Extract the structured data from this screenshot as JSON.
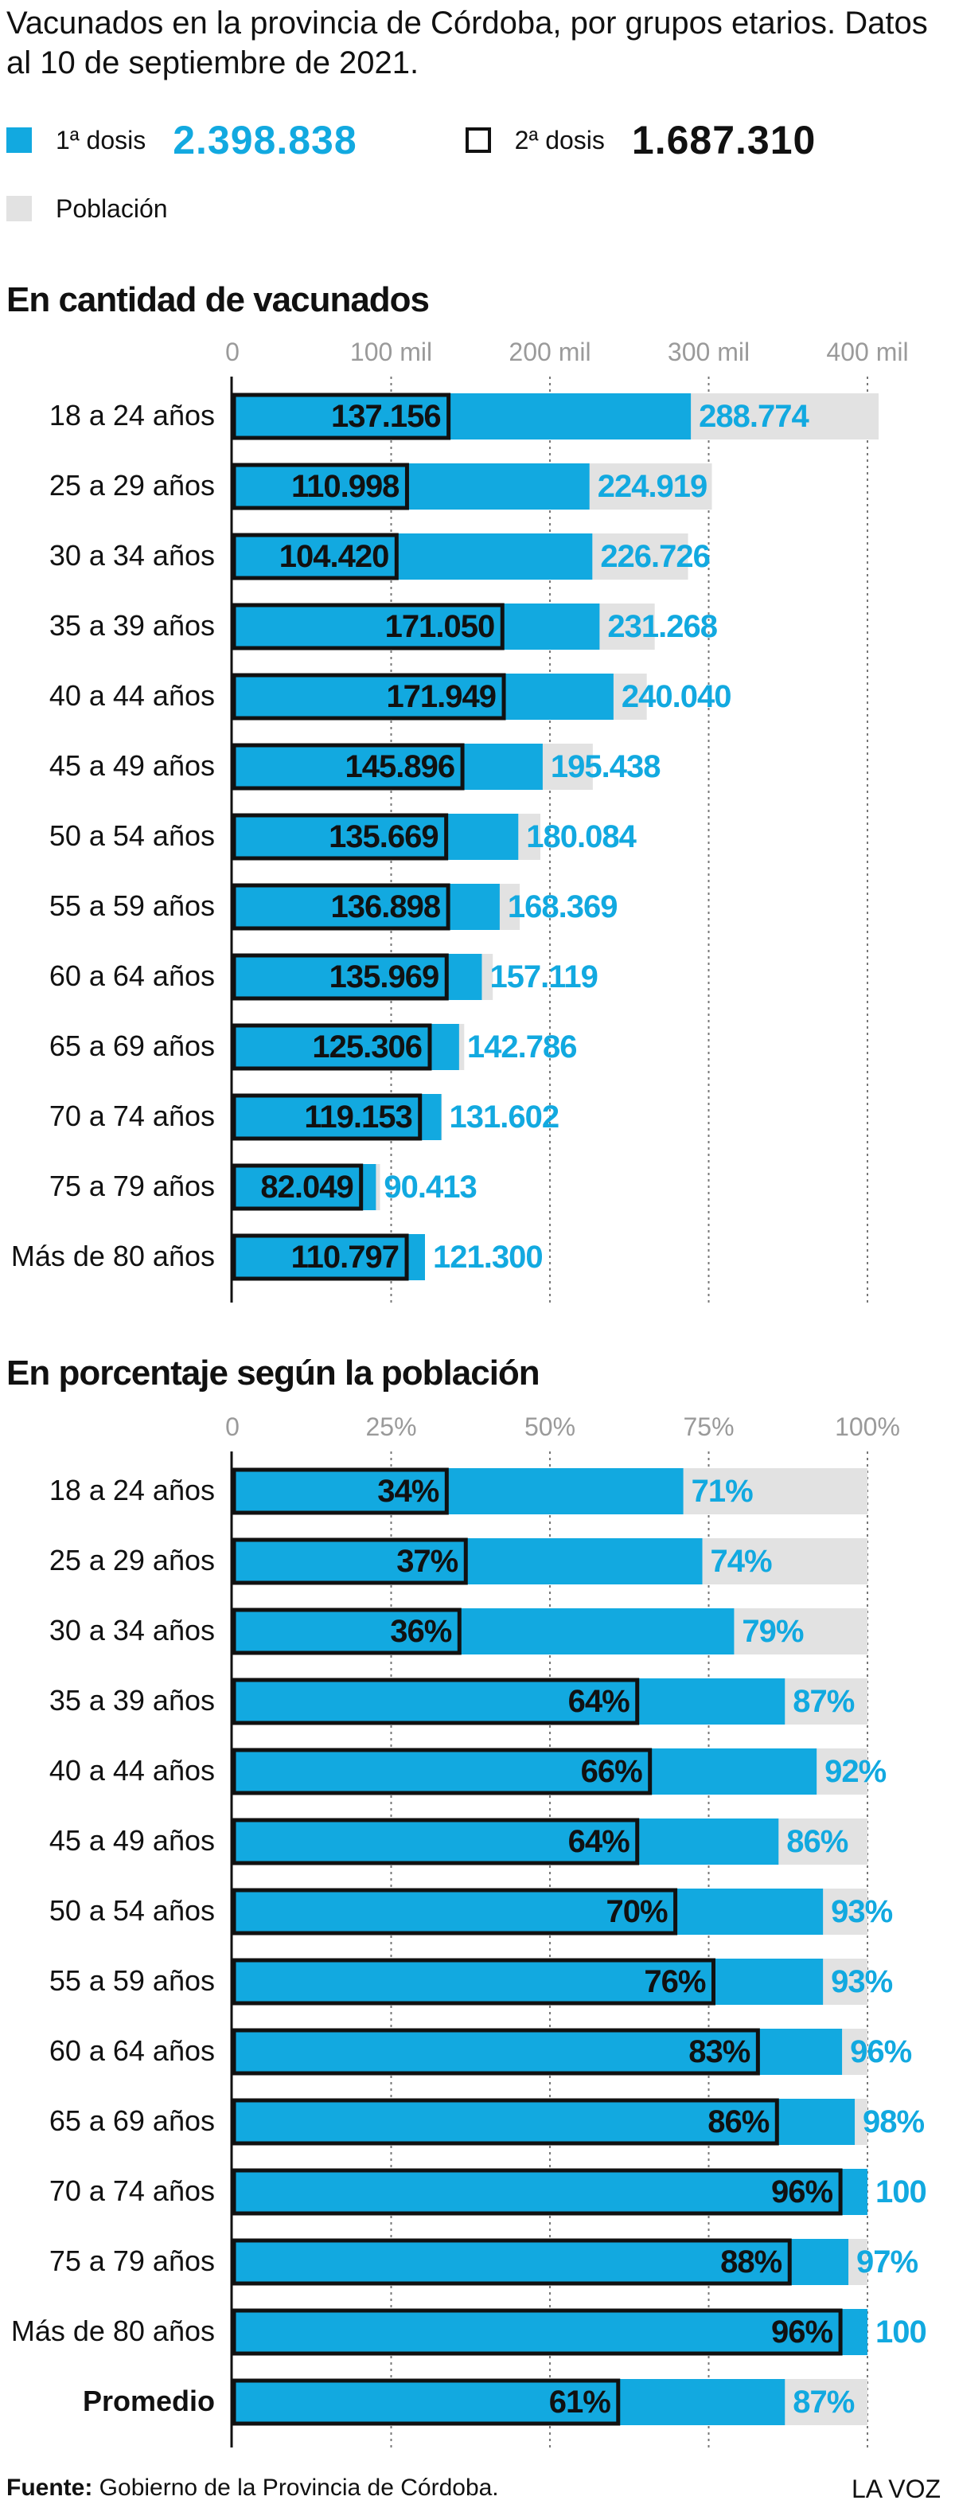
{
  "title": "Vacunados en la provincia de Córdoba, por grupos etarios. Datos al 10 de septiembre de 2021.",
  "legend": {
    "dose1_label": "1ª dosis",
    "dose1_total": "2.398.838",
    "dose2_label": "2ª dosis",
    "dose2_total": "1.687.310",
    "population_label": "Población"
  },
  "colors": {
    "dose1": "#12a9e0",
    "population": "#e2e2e2",
    "dose2_border": "#111111",
    "grid": "#777777"
  },
  "footer": {
    "source_label": "Fuente:",
    "source_text": "Gobierno de la Provincia de Córdoba.",
    "brand": "LA VOZ"
  },
  "chart_data": [
    {
      "type": "bar",
      "title": "En cantidad de vacunados",
      "xlim": [
        0,
        400000
      ],
      "ticks": [
        0,
        100000,
        200000,
        300000,
        400000
      ],
      "tick_labels": [
        "0",
        "100 mil",
        "200 mil",
        "300 mil",
        "400 mil"
      ],
      "categories": [
        "18 a 24 años",
        "25 a 29 años",
        "30 a 34 años",
        "35 a 39 años",
        "40 a 44 años",
        "45 a 49 años",
        "50 a 54 años",
        "55 a 59 años",
        "60 a 64 años",
        "65 a 69 años",
        "70 a 74 años",
        "75 a 79  años",
        "Más de 80 años"
      ],
      "series": [
        {
          "name": "Población",
          "values": [
            407000,
            302000,
            287000,
            266000,
            261000,
            227000,
            194000,
            181000,
            164000,
            146000,
            132000,
            93000,
            121300
          ]
        },
        {
          "name": "1ª dosis",
          "values": [
            288774,
            224919,
            226726,
            231268,
            240040,
            195438,
            180084,
            168369,
            157119,
            142786,
            131602,
            90413,
            121300
          ],
          "labels": [
            "288.774",
            "224.919",
            "226.726",
            "231.268",
            "240.040",
            "195.438",
            "180.084",
            "168.369",
            "157.119",
            "142.786",
            "131.602",
            "90.413",
            "121.300"
          ]
        },
        {
          "name": "2ª dosis",
          "values": [
            137156,
            110998,
            104420,
            171050,
            171949,
            145896,
            135669,
            136898,
            135969,
            125306,
            119153,
            82049,
            110797
          ],
          "labels": [
            "137.156",
            "110.998",
            "104.420",
            "171.050",
            "171.949",
            "145.896",
            "135.669",
            "136.898",
            "135.969",
            "125.306",
            "119.153",
            "82.049",
            "110.797"
          ]
        }
      ]
    },
    {
      "type": "bar",
      "title": "En porcentaje según la población",
      "xlim": [
        0,
        100
      ],
      "ticks": [
        0,
        25,
        50,
        75,
        100
      ],
      "tick_labels": [
        "0",
        "25%",
        "50%",
        "75%",
        "100%"
      ],
      "categories": [
        "18 a 24 años",
        "25 a 29 años",
        "30 a 34 años",
        "35 a 39 años",
        "40 a 44 años",
        "45 a 49 años",
        "50 a 54 años",
        "55 a 59 años",
        "60 a 64 años",
        "65 a 69 años",
        "70 a 74 años",
        "75 a 79  años",
        "Más de 80 años",
        "Promedio"
      ],
      "emphasis_last": true,
      "series": [
        {
          "name": "Población",
          "values": [
            100,
            100,
            100,
            100,
            100,
            100,
            100,
            100,
            100,
            100,
            100,
            100,
            100,
            100
          ]
        },
        {
          "name": "1ª dosis",
          "values": [
            71,
            74,
            79,
            87,
            92,
            86,
            93,
            93,
            96,
            98,
            100,
            97,
            100,
            87
          ],
          "labels": [
            "71%",
            "74%",
            "79%",
            "87%",
            "92%",
            "86%",
            "93%",
            "93%",
            "96%",
            "98%",
            "100",
            "97%",
            "100",
            "87%"
          ]
        },
        {
          "name": "2ª dosis",
          "values": [
            34,
            37,
            36,
            64,
            66,
            64,
            70,
            76,
            83,
            86,
            96,
            88,
            96,
            61
          ],
          "labels": [
            "34%",
            "37%",
            "36%",
            "64%",
            "66%",
            "64%",
            "70%",
            "76%",
            "83%",
            "86%",
            "96%",
            "88%",
            "96%",
            "61%"
          ]
        }
      ]
    }
  ]
}
